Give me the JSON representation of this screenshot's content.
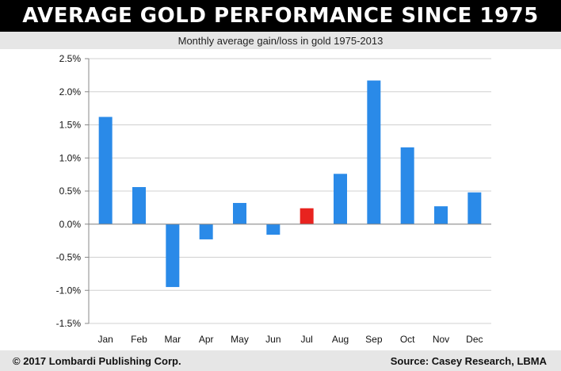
{
  "header": {
    "title": "AVERAGE GOLD PERFORMANCE SINCE 1975",
    "subtitle": "Monthly average gain/loss in gold 1975-2013"
  },
  "footer": {
    "copyright": "© 2017 Lombardi Publishing Corp.",
    "source": "Source: Casey Research, LBMA"
  },
  "colors": {
    "bar": "#2a8ae8",
    "highlight_bar": "#e8231f",
    "grid": "#d0d0d0",
    "axis": "#888888"
  },
  "chart_data": {
    "type": "bar",
    "categories": [
      "Jan",
      "Feb",
      "Mar",
      "Apr",
      "May",
      "Jun",
      "Jul",
      "Aug",
      "Sep",
      "Oct",
      "Nov",
      "Dec"
    ],
    "values": [
      1.62,
      0.56,
      -0.95,
      -0.23,
      0.32,
      -0.16,
      0.24,
      0.76,
      2.17,
      1.16,
      0.27,
      0.48
    ],
    "value_unit": "%",
    "highlight_category": "Jul",
    "ylim": [
      -1.5,
      2.5
    ],
    "yticks": [
      -1.5,
      -1.0,
      -0.5,
      0.0,
      0.5,
      1.0,
      1.5,
      2.0,
      2.5
    ],
    "ytick_labels": [
      "-1.5%",
      "-1.0%",
      "-0.5%",
      "0.0%",
      "0.5%",
      "1.0%",
      "1.5%",
      "2.0%",
      "2.5%"
    ],
    "grid": true,
    "legend": "none",
    "xlabel": "",
    "ylabel": ""
  }
}
